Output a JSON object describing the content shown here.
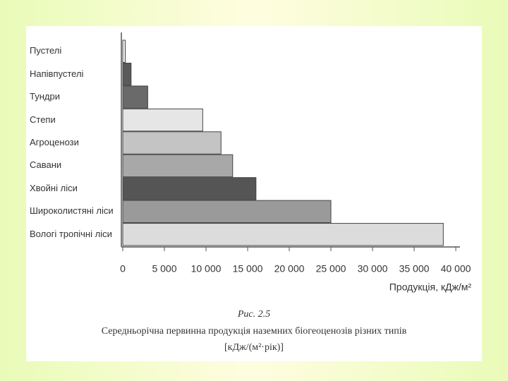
{
  "chart_data": {
    "type": "barh",
    "categories": [
      "Пустелі",
      "Напівпустелі",
      "Тундри",
      "Степи",
      "Агроценози",
      "Савани",
      "Хвойні ліси",
      "Широколистяні ліси",
      "Вологі тропічні ліси"
    ],
    "values": [
      300,
      1000,
      3000,
      9600,
      11800,
      13200,
      16000,
      25000,
      38500
    ],
    "colors": [
      "#f2f2f2",
      "#5a5a5a",
      "#6a6a6a",
      "#e6e6e6",
      "#c4c4c4",
      "#a8a8a8",
      "#555555",
      "#9a9a9a",
      "#dcdcdc"
    ],
    "xlim": [
      0,
      40000
    ],
    "xticks": [
      0,
      {
        "value": 5000,
        "label": "5 000"
      },
      {
        "value": 10000,
        "label": "10 000"
      },
      {
        "value": 15000,
        "label": "15 000"
      },
      {
        "value": 20000,
        "label": "20 000"
      },
      {
        "value": 25000,
        "label": "25 000"
      },
      {
        "value": 30000,
        "label": "30 000"
      },
      {
        "value": 35000,
        "label": "35 000"
      },
      {
        "value": 40000,
        "label": "40 000"
      }
    ],
    "xlabel": "Продукція, кДж/м²",
    "figure_label": "Рис. 2.5",
    "caption": "Середньорічна первинна продукція наземних біогеоценозів різних типів",
    "caption_units": "[кДж/(м²·рік)]"
  }
}
